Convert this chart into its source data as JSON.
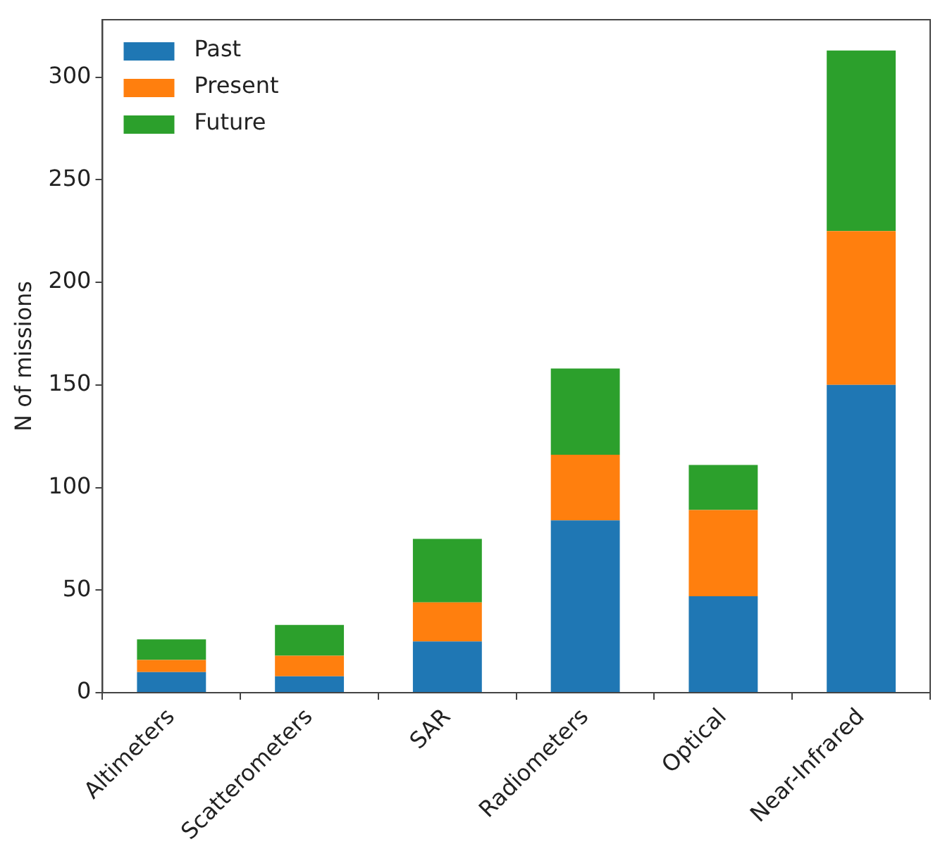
{
  "chart_data": {
    "type": "bar",
    "stacked": true,
    "ylabel": "N of missions",
    "categories": [
      "Altimeters",
      "Scatterometers",
      "SAR",
      "Radiometers",
      "Optical",
      "Near-Infrared"
    ],
    "series": [
      {
        "name": "Past",
        "color": "#1f77b4",
        "values": [
          10,
          8,
          25,
          84,
          47,
          150
        ]
      },
      {
        "name": "Present",
        "color": "#ff7f0e",
        "values": [
          6,
          10,
          19,
          32,
          42,
          75
        ]
      },
      {
        "name": "Future",
        "color": "#2ca02c",
        "values": [
          10,
          15,
          31,
          42,
          22,
          88
        ]
      }
    ],
    "ylim": [
      0,
      328
    ],
    "yticks": [
      0,
      50,
      100,
      150,
      200,
      250,
      300
    ],
    "grid": false,
    "legend": "top left"
  }
}
